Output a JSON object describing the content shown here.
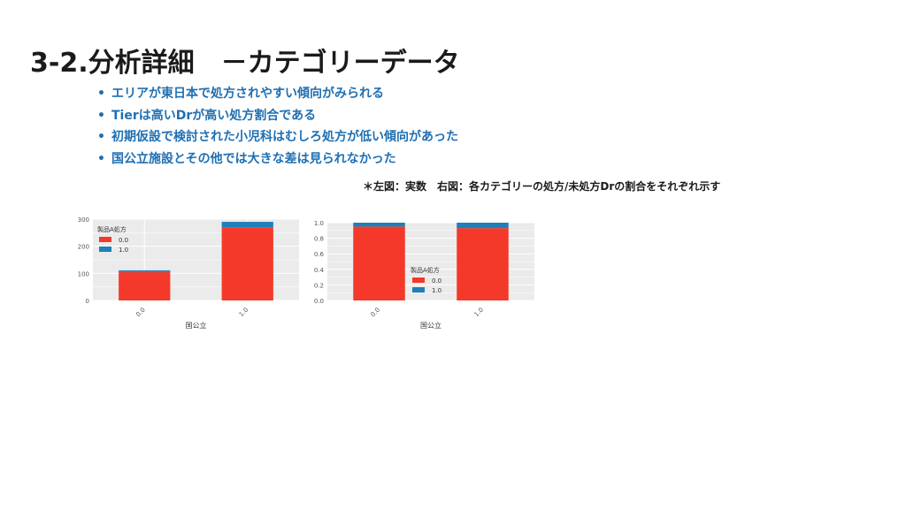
{
  "page": {
    "title": "3-2.分析詳細　－カテゴリーデータ",
    "bullets": [
      "エリアが東日本で処方されやすい傾向がみられる",
      "Tierは高いDrが高い処方割合である",
      "初期仮設で検討された小児科はむしろ処方が低い傾向があった",
      "国公立施設とその他では大きな差は見られなかった"
    ],
    "note": "＊左図：実数　右図：各カテゴリーの処方/未処方Drの割合をそれぞれ示す",
    "bullet_symbol": "•"
  },
  "colors": {
    "series0": "#f4392a",
    "series1": "#1f7fb8",
    "panel": "#ebebeb",
    "grid": "#ffffff",
    "accent": "#1f6fb2"
  },
  "chart_data": [
    {
      "type": "bar",
      "stacked": true,
      "categories": [
        "0.0",
        "1.0"
      ],
      "series": [
        {
          "name": "0.0",
          "values": [
            105,
            270
          ]
        },
        {
          "name": "1.0",
          "values": [
            6,
            20
          ]
        }
      ],
      "xlabel": "国公立",
      "ylabel": "",
      "ylim": [
        0,
        300
      ],
      "yticks": [
        "0",
        "100",
        "200",
        "300"
      ],
      "legend_title": "製品A処方",
      "legend_position": "top-left",
      "grid": true
    },
    {
      "type": "bar",
      "stacked": true,
      "categories": [
        "0.0",
        "1.0"
      ],
      "series": [
        {
          "name": "0.0",
          "values": [
            0.95,
            0.93
          ]
        },
        {
          "name": "1.0",
          "values": [
            0.05,
            0.07
          ]
        }
      ],
      "xlabel": "国公立",
      "ylabel": "",
      "ylim": [
        0,
        1.0
      ],
      "yticks": [
        "0.0",
        "0.2",
        "0.4",
        "0.6",
        "0.8",
        "1.0"
      ],
      "legend_title": "製品A処方",
      "legend_position": "center",
      "grid": true
    }
  ]
}
